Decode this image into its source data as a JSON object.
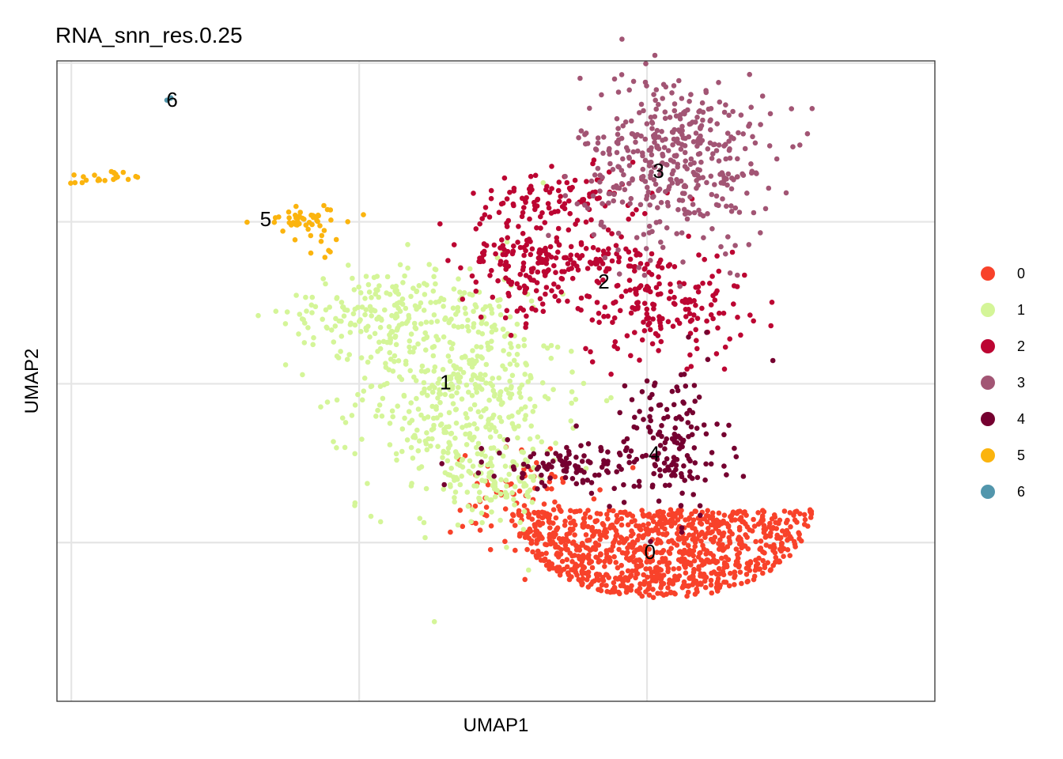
{
  "chart_data": {
    "type": "scatter",
    "title": "RNA_snn_res.0.25",
    "xlabel": "UMAP1",
    "ylabel": "UMAP2",
    "grid": true,
    "x_tick_labels_shown": false,
    "y_tick_labels_shown": false,
    "legend_position": "right",
    "series": [
      {
        "name": "0",
        "color": "#F8422A",
        "label_pos": [
          0.77,
          -1.55
        ]
      },
      {
        "name": "1",
        "color": "#D4F598",
        "label_pos": [
          -0.65,
          0.0
        ]
      },
      {
        "name": "2",
        "color": "#BC0532",
        "label_pos": [
          0.45,
          0.92
        ]
      },
      {
        "name": "3",
        "color": "#A25574",
        "label_pos": [
          0.83,
          1.93
        ]
      },
      {
        "name": "4",
        "color": "#750030",
        "label_pos": [
          0.8,
          -0.65
        ]
      },
      {
        "name": "5",
        "color": "#FBB40E",
        "label_pos": [
          -1.9,
          1.49
        ]
      },
      {
        "name": "6",
        "color": "#5296AC",
        "label_pos": [
          -2.55,
          2.58
        ]
      }
    ]
  }
}
